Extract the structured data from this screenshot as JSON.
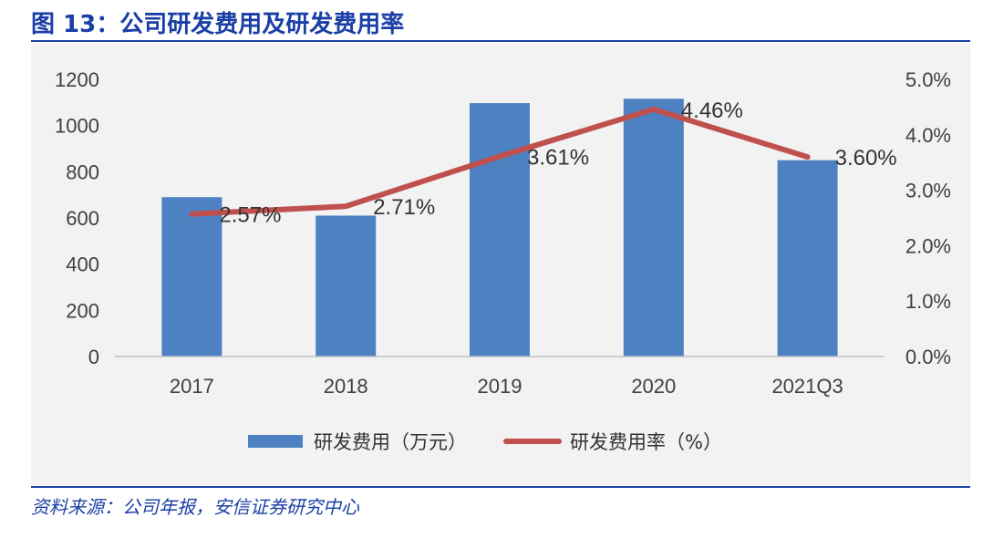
{
  "header": {
    "title": "图 13：公司研发费用及研发费用率"
  },
  "footer": {
    "source": "资料来源：公司年报，安信证券研究中心"
  },
  "colors": {
    "bar": "#4e81c2",
    "line": "#c0504d",
    "brand": "#1a3fa6"
  },
  "chart_data": {
    "type": "bar",
    "categories": [
      "2017",
      "2018",
      "2019",
      "2020",
      "2021Q3"
    ],
    "series": [
      {
        "name": "研发费用（万元）",
        "type": "bar",
        "axis": "left",
        "values": [
          690,
          610,
          1097,
          1116,
          850
        ]
      },
      {
        "name": "研发费用率（%）",
        "type": "line",
        "axis": "right",
        "values": [
          2.57,
          2.71,
          3.61,
          4.46,
          3.6
        ],
        "labels": [
          "2.57%",
          "2.71%",
          "3.61%",
          "4.46%",
          "3.60%"
        ]
      }
    ],
    "y_left": {
      "ylim": [
        0,
        1200
      ],
      "ticks": [
        "0",
        "200",
        "400",
        "600",
        "800",
        "1000",
        "1200"
      ]
    },
    "y_right": {
      "ylim": [
        0,
        5
      ],
      "ticks": [
        "0.0%",
        "1.0%",
        "2.0%",
        "3.0%",
        "4.0%",
        "5.0%"
      ]
    },
    "grid": false,
    "legend_position": "bottom"
  }
}
